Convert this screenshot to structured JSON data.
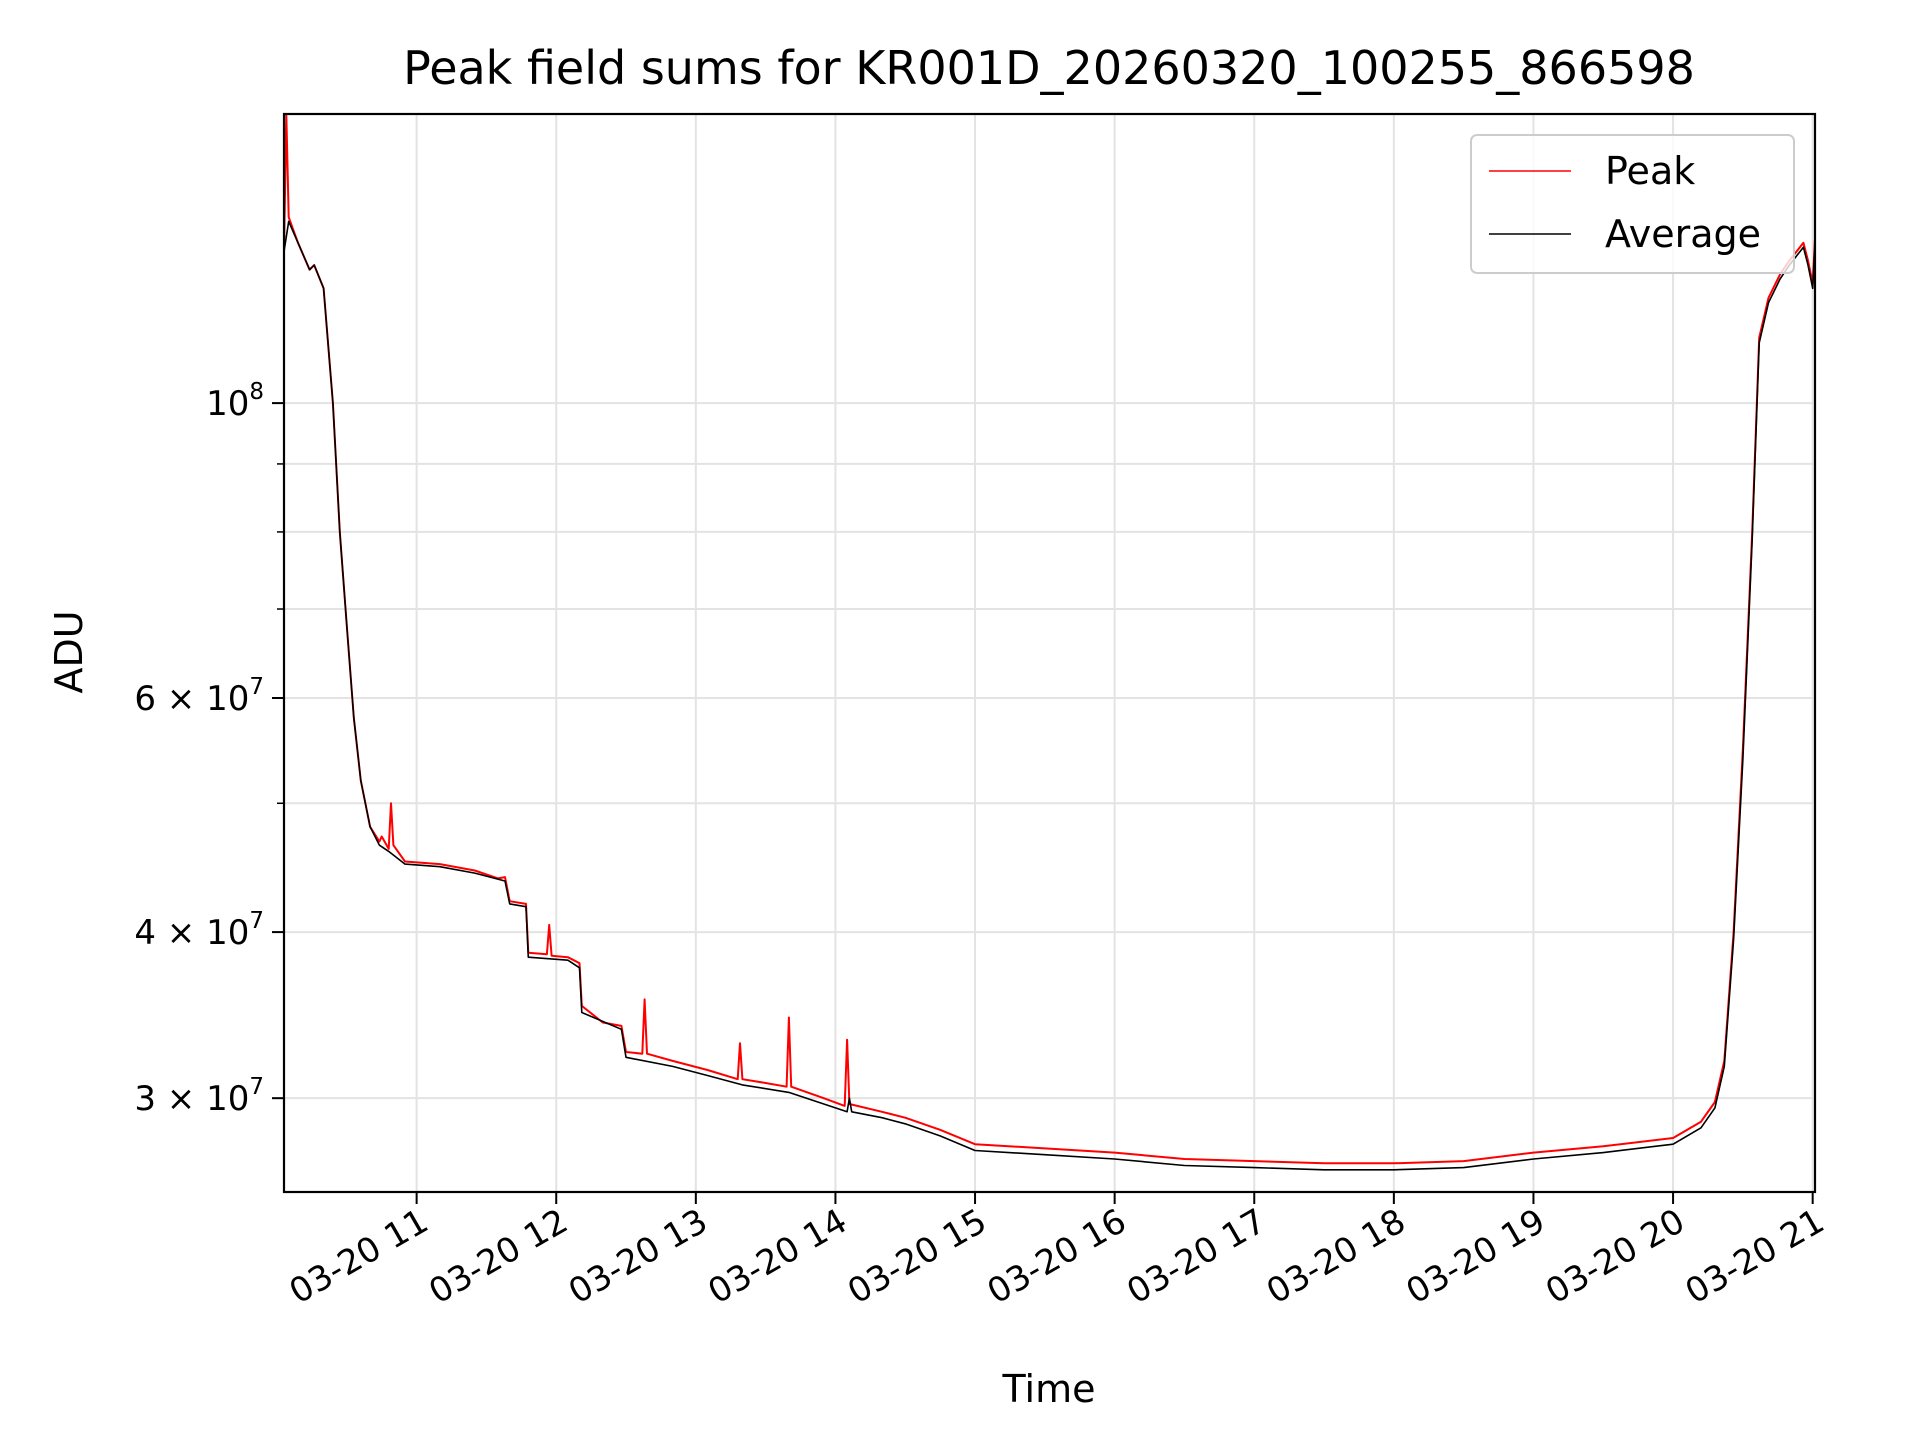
{
  "chart_data": {
    "type": "line",
    "title": "Peak field sums for KR001D_20260320_100255_866598",
    "xlabel": "Time",
    "ylabel": "ADU",
    "yscale": "log",
    "ylim": [
      25500000,
      165000000
    ],
    "xlim": [
      "2026-03-20 10:03",
      "2026-03-20 21:01"
    ],
    "grid": true,
    "legend_position": "top-right",
    "x_ticks": [
      "03-20 11",
      "03-20 12",
      "03-20 13",
      "03-20 14",
      "03-20 15",
      "03-20 16",
      "03-20 17",
      "03-20 18",
      "03-20 19",
      "03-20 20",
      "03-20 21"
    ],
    "y_ticks": [
      {
        "value": 30000000,
        "mantissa": "3",
        "exp": "7"
      },
      {
        "value": 40000000,
        "mantissa": "4",
        "exp": "7"
      },
      {
        "value": 60000000,
        "mantissa": "6",
        "exp": "7"
      },
      {
        "value": 100000000,
        "mantissa": "",
        "exp": "8"
      }
    ],
    "series": [
      {
        "name": "Peak",
        "color": "#ff0000",
        "points": [
          [
            "2026-03-20 10:03",
            130000000
          ],
          [
            "2026-03-20 10:04",
            165000000
          ],
          [
            "2026-03-20 10:05",
            138000000
          ],
          [
            "2026-03-20 10:09",
            132000000
          ],
          [
            "2026-03-20 10:14",
            126000000
          ],
          [
            "2026-03-20 10:16",
            127000000
          ],
          [
            "2026-03-20 10:20",
            122000000
          ],
          [
            "2026-03-20 10:24",
            100000000
          ],
          [
            "2026-03-20 10:27",
            80000000
          ],
          [
            "2026-03-20 10:30",
            68000000
          ],
          [
            "2026-03-20 10:33",
            58000000
          ],
          [
            "2026-03-20 10:36",
            52000000
          ],
          [
            "2026-03-20 10:40",
            48000000
          ],
          [
            "2026-03-20 10:44",
            46800000
          ],
          [
            "2026-03-20 10:45",
            47200000
          ],
          [
            "2026-03-20 10:48",
            46200000
          ],
          [
            "2026-03-20 10:49",
            50000000
          ],
          [
            "2026-03-20 10:50",
            46500000
          ],
          [
            "2026-03-20 10:55",
            45200000
          ],
          [
            "2026-03-20 11:10",
            45000000
          ],
          [
            "2026-03-20 11:25",
            44500000
          ],
          [
            "2026-03-20 11:35",
            43900000
          ],
          [
            "2026-03-20 11:38",
            44000000
          ],
          [
            "2026-03-20 11:40",
            42200000
          ],
          [
            "2026-03-20 11:47",
            42000000
          ],
          [
            "2026-03-20 11:48",
            38600000
          ],
          [
            "2026-03-20 11:56",
            38500000
          ],
          [
            "2026-03-20 11:57",
            40500000
          ],
          [
            "2026-03-20 11:58",
            38400000
          ],
          [
            "2026-03-20 12:05",
            38300000
          ],
          [
            "2026-03-20 12:10",
            37900000
          ],
          [
            "2026-03-20 12:11",
            35200000
          ],
          [
            "2026-03-20 12:20",
            34200000
          ],
          [
            "2026-03-20 12:28",
            34000000
          ],
          [
            "2026-03-20 12:30",
            32500000
          ],
          [
            "2026-03-20 12:37",
            32400000
          ],
          [
            "2026-03-20 12:38",
            35600000
          ],
          [
            "2026-03-20 12:39",
            32400000
          ],
          [
            "2026-03-20 12:50",
            32000000
          ],
          [
            "2026-03-20 13:05",
            31500000
          ],
          [
            "2026-03-20 13:18",
            31000000
          ],
          [
            "2026-03-20 13:19",
            33000000
          ],
          [
            "2026-03-20 13:20",
            31000000
          ],
          [
            "2026-03-20 13:30",
            30800000
          ],
          [
            "2026-03-20 13:39",
            30600000
          ],
          [
            "2026-03-20 13:40",
            34500000
          ],
          [
            "2026-03-20 13:41",
            30600000
          ],
          [
            "2026-03-20 13:55",
            30000000
          ],
          [
            "2026-03-20 14:04",
            29600000
          ],
          [
            "2026-03-20 14:05",
            33200000
          ],
          [
            "2026-03-20 14:06",
            29700000
          ],
          [
            "2026-03-20 14:20",
            29300000
          ],
          [
            "2026-03-20 14:30",
            29000000
          ],
          [
            "2026-03-20 14:45",
            28400000
          ],
          [
            "2026-03-20 15:00",
            27700000
          ],
          [
            "2026-03-20 15:30",
            27500000
          ],
          [
            "2026-03-20 16:00",
            27300000
          ],
          [
            "2026-03-20 16:30",
            27000000
          ],
          [
            "2026-03-20 17:00",
            26900000
          ],
          [
            "2026-03-20 17:30",
            26800000
          ],
          [
            "2026-03-20 18:00",
            26800000
          ],
          [
            "2026-03-20 18:30",
            26900000
          ],
          [
            "2026-03-20 19:00",
            27300000
          ],
          [
            "2026-03-20 19:30",
            27600000
          ],
          [
            "2026-03-20 20:00",
            28000000
          ],
          [
            "2026-03-20 20:12",
            28800000
          ],
          [
            "2026-03-20 20:18",
            29800000
          ],
          [
            "2026-03-20 20:22",
            32000000
          ],
          [
            "2026-03-20 20:26",
            40000000
          ],
          [
            "2026-03-20 20:30",
            55000000
          ],
          [
            "2026-03-20 20:34",
            80000000
          ],
          [
            "2026-03-20 20:37",
            112000000
          ],
          [
            "2026-03-20 20:41",
            120000000
          ],
          [
            "2026-03-20 20:46",
            125000000
          ],
          [
            "2026-03-20 20:50",
            128000000
          ],
          [
            "2026-03-20 20:56",
            132000000
          ],
          [
            "2026-03-20 20:58",
            128000000
          ],
          [
            "2026-03-20 21:00",
            123000000
          ],
          [
            "2026-03-20 21:01",
            133000000
          ]
        ]
      },
      {
        "name": "Average",
        "color": "#000000",
        "points": [
          [
            "2026-03-20 10:03",
            130000000
          ],
          [
            "2026-03-20 10:05",
            137000000
          ],
          [
            "2026-03-20 10:09",
            132000000
          ],
          [
            "2026-03-20 10:14",
            126000000
          ],
          [
            "2026-03-20 10:16",
            127000000
          ],
          [
            "2026-03-20 10:20",
            122000000
          ],
          [
            "2026-03-20 10:24",
            100000000
          ],
          [
            "2026-03-20 10:27",
            80000000
          ],
          [
            "2026-03-20 10:30",
            68000000
          ],
          [
            "2026-03-20 10:33",
            58000000
          ],
          [
            "2026-03-20 10:36",
            52000000
          ],
          [
            "2026-03-20 10:40",
            48000000
          ],
          [
            "2026-03-20 10:44",
            46500000
          ],
          [
            "2026-03-20 10:48",
            46000000
          ],
          [
            "2026-03-20 10:55",
            45000000
          ],
          [
            "2026-03-20 11:10",
            44800000
          ],
          [
            "2026-03-20 11:25",
            44300000
          ],
          [
            "2026-03-20 11:38",
            43700000
          ],
          [
            "2026-03-20 11:40",
            42000000
          ],
          [
            "2026-03-20 11:47",
            41800000
          ],
          [
            "2026-03-20 11:48",
            38300000
          ],
          [
            "2026-03-20 12:05",
            38100000
          ],
          [
            "2026-03-20 12:10",
            37600000
          ],
          [
            "2026-03-20 12:11",
            34800000
          ],
          [
            "2026-03-20 12:28",
            33800000
          ],
          [
            "2026-03-20 12:30",
            32200000
          ],
          [
            "2026-03-20 12:50",
            31700000
          ],
          [
            "2026-03-20 13:05",
            31200000
          ],
          [
            "2026-03-20 13:20",
            30700000
          ],
          [
            "2026-03-20 13:40",
            30300000
          ],
          [
            "2026-03-20 13:55",
            29700000
          ],
          [
            "2026-03-20 14:05",
            29300000
          ],
          [
            "2026-03-20 14:06",
            30000000
          ],
          [
            "2026-03-20 14:07",
            29300000
          ],
          [
            "2026-03-20 14:20",
            29000000
          ],
          [
            "2026-03-20 14:30",
            28700000
          ],
          [
            "2026-03-20 14:45",
            28100000
          ],
          [
            "2026-03-20 15:00",
            27400000
          ],
          [
            "2026-03-20 15:30",
            27200000
          ],
          [
            "2026-03-20 16:00",
            27000000
          ],
          [
            "2026-03-20 16:30",
            26700000
          ],
          [
            "2026-03-20 17:00",
            26600000
          ],
          [
            "2026-03-20 17:30",
            26500000
          ],
          [
            "2026-03-20 18:00",
            26500000
          ],
          [
            "2026-03-20 18:30",
            26600000
          ],
          [
            "2026-03-20 19:00",
            27000000
          ],
          [
            "2026-03-20 19:30",
            27300000
          ],
          [
            "2026-03-20 20:00",
            27700000
          ],
          [
            "2026-03-20 20:12",
            28500000
          ],
          [
            "2026-03-20 20:18",
            29500000
          ],
          [
            "2026-03-20 20:22",
            31700000
          ],
          [
            "2026-03-20 20:26",
            39500000
          ],
          [
            "2026-03-20 20:30",
            54000000
          ],
          [
            "2026-03-20 20:34",
            79000000
          ],
          [
            "2026-03-20 20:37",
            111000000
          ],
          [
            "2026-03-20 20:41",
            119000000
          ],
          [
            "2026-03-20 20:46",
            124000000
          ],
          [
            "2026-03-20 20:50",
            127000000
          ],
          [
            "2026-03-20 20:56",
            131000000
          ],
          [
            "2026-03-20 20:58",
            127000000
          ],
          [
            "2026-03-20 21:00",
            122000000
          ],
          [
            "2026-03-20 21:01",
            132000000
          ]
        ]
      }
    ]
  }
}
